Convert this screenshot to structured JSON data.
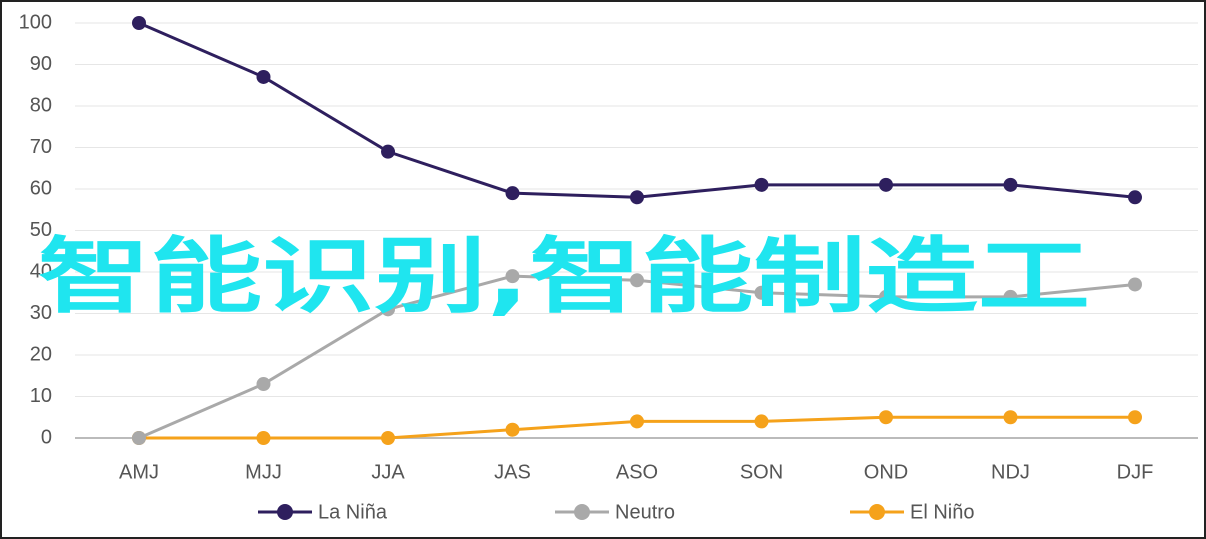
{
  "chart_data": {
    "type": "line",
    "categories": [
      "AMJ",
      "MJJ",
      "JJA",
      "JAS",
      "ASO",
      "SON",
      "OND",
      "NDJ",
      "DJF"
    ],
    "series": [
      {
        "name": "La Niña",
        "color": "#2e1f5e",
        "values": [
          100,
          87,
          69,
          59,
          58,
          61,
          61,
          61,
          58
        ]
      },
      {
        "name": "Neutro",
        "color": "#a9a9a9",
        "values": [
          0,
          13,
          31,
          39,
          38,
          35,
          34,
          34,
          37
        ]
      },
      {
        "name": "El Niño",
        "color": "#f5a21b",
        "values": [
          0,
          0,
          0,
          2,
          4,
          4,
          5,
          5,
          5
        ]
      }
    ],
    "ylim": [
      0,
      100
    ],
    "yticks": [
      0,
      10,
      20,
      30,
      40,
      50,
      60,
      70,
      80,
      90,
      100
    ],
    "grid": true,
    "legend": "bottom",
    "annotation": "智能识别,智能制造工"
  }
}
